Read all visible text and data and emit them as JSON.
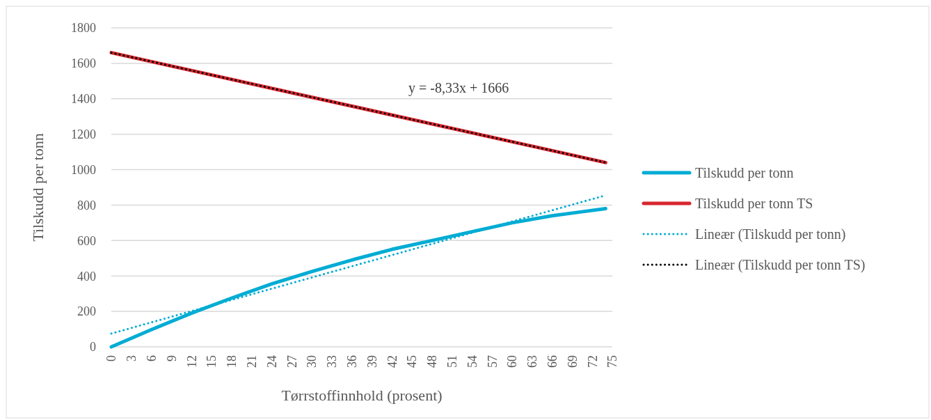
{
  "chart_data": {
    "type": "line",
    "xlabel": "Tørrstoffinnhold (prosent)",
    "ylabel": "Tilskudd per tonn",
    "xlim": [
      0,
      75
    ],
    "xticks": [
      0,
      3,
      6,
      9,
      12,
      15,
      18,
      21,
      24,
      27,
      30,
      33,
      36,
      39,
      42,
      45,
      48,
      51,
      54,
      57,
      60,
      63,
      66,
      69,
      72,
      75
    ],
    "ylim": [
      0,
      1800
    ],
    "yticks": [
      0,
      200,
      400,
      600,
      800,
      1000,
      1200,
      1400,
      1600,
      1800
    ],
    "grid": "y",
    "legend": "right",
    "annotations": [
      "y = -8,33x + 1666"
    ],
    "series": [
      {
        "name": "Tilskudd per tonn",
        "color": "#00acd4",
        "line_style": "solid",
        "x": [
          0,
          6,
          12,
          18,
          24,
          30,
          36,
          42,
          48,
          54,
          60,
          66,
          70,
          74
        ],
        "values": [
          0,
          97,
          190,
          275,
          355,
          425,
          490,
          550,
          600,
          650,
          700,
          740,
          760,
          780
        ]
      },
      {
        "name": "Tilskudd per tonn TS",
        "color": "#d7262e",
        "line_style": "solid",
        "x": [
          0,
          74
        ],
        "values": [
          1660,
          1040
        ]
      },
      {
        "name": "Lineær (Tilskudd per tonn)",
        "color": "#00acd4",
        "line_style": "dotted",
        "x": [
          0,
          74
        ],
        "values": [
          75,
          855
        ]
      },
      {
        "name": "Lineær (Tilskudd per tonn TS)",
        "color": "#000000",
        "line_style": "dotted",
        "x": [
          0,
          74
        ],
        "values": [
          1660,
          1040
        ]
      }
    ]
  }
}
